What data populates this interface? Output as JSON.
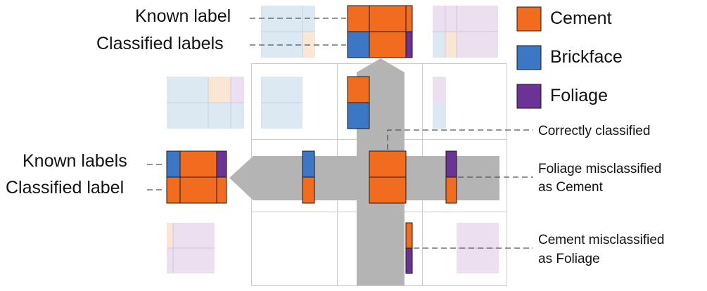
{
  "colors": {
    "cement": "#f26c1f",
    "brickface": "#3b77c4",
    "foliage": "#6a3395",
    "light_blue": "#dde9f2",
    "light_orange": "#fbe6d4",
    "light_purple": "#ebdff0",
    "grid_line": "#cccccc",
    "arrow": "#b4b4b4",
    "dashed_line": "#555555"
  },
  "legend": {
    "items": [
      {
        "label": "Cement",
        "color_key": "cement"
      },
      {
        "label": "Brickface",
        "color_key": "brickface"
      },
      {
        "label": "Foliage",
        "color_key": "foliage"
      }
    ]
  },
  "labels": {
    "top": {
      "known": "Known label",
      "classified": "Classified labels"
    },
    "left": {
      "known": "Known labels",
      "classified": "Classified label"
    }
  },
  "annotations": {
    "correct": "Correctly classified",
    "foliage_as_cement": [
      "Foliage misclassified",
      "as Cement"
    ],
    "cement_as_foliage": [
      "Cement misclassified",
      "as Foliage"
    ]
  }
}
